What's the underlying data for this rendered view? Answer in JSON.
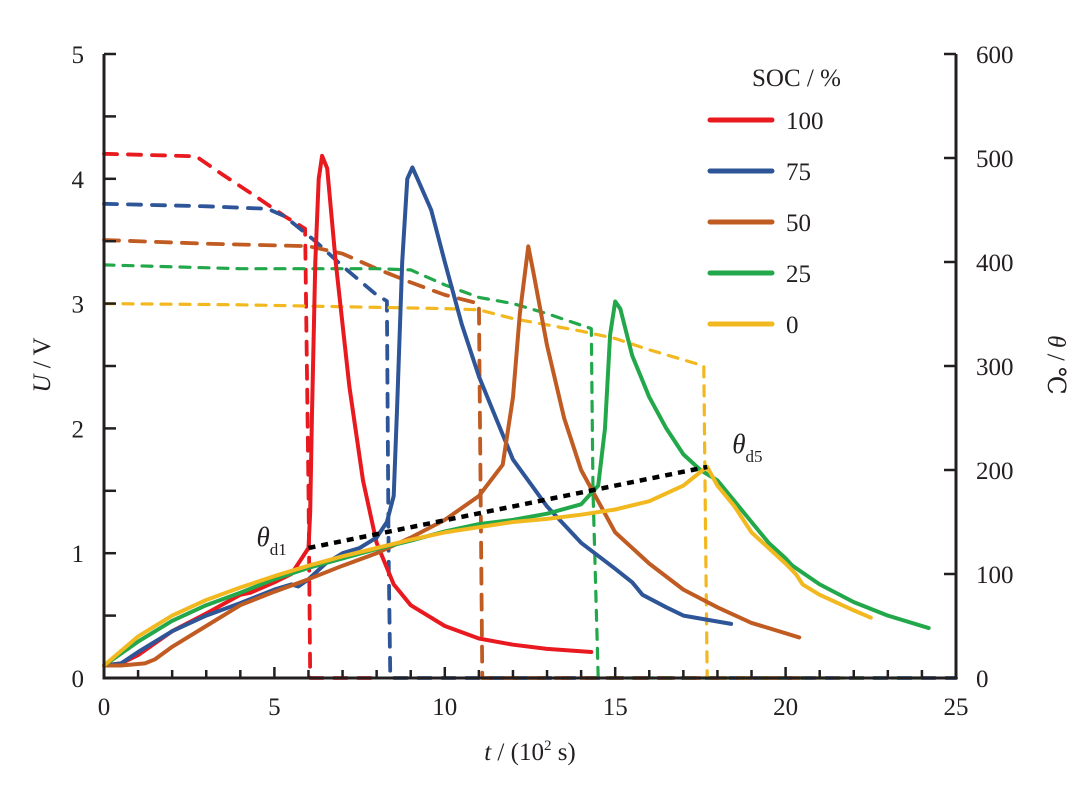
{
  "chart_data": {
    "type": "line",
    "title": "",
    "xlabel": {
      "italic": "t",
      "rest": " / (10",
      "sup": "2",
      "end": " s)"
    },
    "ylabel_left": {
      "italic": "U",
      "rest": " / V"
    },
    "ylabel_right": {
      "italic": "θ",
      "rest": " / ℃"
    },
    "xlim": [
      0,
      25
    ],
    "ylim_left": [
      0,
      5
    ],
    "ylim_right": [
      0,
      600
    ],
    "x_ticks": [
      0,
      5,
      10,
      15,
      20,
      25
    ],
    "x_minor_step": 1,
    "y_left_ticks": [
      0,
      1,
      2,
      3,
      4,
      5
    ],
    "y_left_minor_step": 0.5,
    "y_right_ticks": [
      0,
      100,
      200,
      300,
      400,
      500,
      600
    ],
    "grid": false,
    "legend": {
      "title": "SOC / %",
      "placement": "top-right"
    },
    "series": [
      {
        "name": "100",
        "color": "#e8191f",
        "temperature": [
          [
            0,
            12
          ],
          [
            0.5,
            14
          ],
          [
            1,
            22
          ],
          [
            2,
            45
          ],
          [
            3,
            62
          ],
          [
            4,
            80
          ],
          [
            4.3,
            82
          ],
          [
            5,
            92
          ],
          [
            5.5,
            100
          ],
          [
            5.8,
            115
          ],
          [
            6.0,
            125
          ],
          [
            6.05,
            160
          ],
          [
            6.1,
            250
          ],
          [
            6.2,
            400
          ],
          [
            6.3,
            480
          ],
          [
            6.4,
            502
          ],
          [
            6.55,
            490
          ],
          [
            6.8,
            400
          ],
          [
            7.2,
            280
          ],
          [
            7.6,
            190
          ],
          [
            8,
            130
          ],
          [
            8.5,
            90
          ],
          [
            9,
            70
          ],
          [
            10,
            50
          ],
          [
            11,
            38
          ],
          [
            12,
            32
          ],
          [
            13,
            28
          ],
          [
            14.3,
            25
          ]
        ],
        "voltage": [
          [
            0,
            4.2
          ],
          [
            2.7,
            4.18
          ],
          [
            3.5,
            4.03
          ],
          [
            4.5,
            3.85
          ],
          [
            5.3,
            3.7
          ],
          [
            5.9,
            3.6
          ],
          [
            6.0,
            1.5
          ],
          [
            6.05,
            0
          ],
          [
            8,
            0
          ]
        ]
      },
      {
        "name": "75",
        "color": "#2e5597",
        "temperature": [
          [
            0,
            12
          ],
          [
            0.5,
            14
          ],
          [
            1,
            25
          ],
          [
            2,
            45
          ],
          [
            3,
            60
          ],
          [
            4,
            72
          ],
          [
            5,
            85
          ],
          [
            5.5,
            90
          ],
          [
            5.7,
            88
          ],
          [
            6,
            95
          ],
          [
            6.5,
            110
          ],
          [
            7,
            120
          ],
          [
            7.5,
            125
          ],
          [
            8,
            135
          ],
          [
            8.3,
            150
          ],
          [
            8.5,
            175
          ],
          [
            8.6,
            260
          ],
          [
            8.75,
            400
          ],
          [
            8.9,
            480
          ],
          [
            9.05,
            491
          ],
          [
            9.2,
            480
          ],
          [
            9.6,
            450
          ],
          [
            10,
            400
          ],
          [
            10.5,
            340
          ],
          [
            11,
            290
          ],
          [
            11.5,
            250
          ],
          [
            12,
            210
          ],
          [
            13,
            165
          ],
          [
            14,
            130
          ],
          [
            15,
            105
          ],
          [
            15.5,
            92
          ],
          [
            15.8,
            80
          ],
          [
            16.5,
            68
          ],
          [
            17,
            60
          ],
          [
            18.4,
            52
          ]
        ],
        "voltage": [
          [
            0,
            3.8
          ],
          [
            3,
            3.78
          ],
          [
            4.8,
            3.76
          ],
          [
            5.3,
            3.7
          ],
          [
            6.2,
            3.5
          ],
          [
            7,
            3.3
          ],
          [
            8,
            3.07
          ],
          [
            8.3,
            3.02
          ],
          [
            8.35,
            1
          ],
          [
            8.4,
            0
          ],
          [
            25,
            0
          ]
        ]
      },
      {
        "name": "50",
        "color": "#c05b22",
        "temperature": [
          [
            0,
            12
          ],
          [
            0.5,
            12
          ],
          [
            1.2,
            14
          ],
          [
            1.5,
            18
          ],
          [
            2,
            30
          ],
          [
            3,
            50
          ],
          [
            4,
            70
          ],
          [
            5,
            83
          ],
          [
            6,
            95
          ],
          [
            7,
            108
          ],
          [
            8,
            120
          ],
          [
            9,
            135
          ],
          [
            10,
            152
          ],
          [
            11,
            175
          ],
          [
            11.7,
            205
          ],
          [
            12,
            270
          ],
          [
            12.2,
            350
          ],
          [
            12.45,
            415
          ],
          [
            12.6,
            390
          ],
          [
            13,
            320
          ],
          [
            13.5,
            250
          ],
          [
            14,
            200
          ],
          [
            15,
            140
          ],
          [
            16,
            110
          ],
          [
            17,
            85
          ],
          [
            18,
            68
          ],
          [
            19,
            53
          ],
          [
            20.4,
            39
          ]
        ],
        "voltage": [
          [
            0,
            3.51
          ],
          [
            3,
            3.48
          ],
          [
            6,
            3.46
          ],
          [
            7,
            3.4
          ],
          [
            8,
            3.28
          ],
          [
            9,
            3.17
          ],
          [
            10,
            3.07
          ],
          [
            11,
            3.0
          ],
          [
            11.05,
            1.5
          ],
          [
            11.1,
            0
          ],
          [
            20.4,
            0
          ]
        ]
      },
      {
        "name": "25",
        "color": "#22a84a",
        "temperature": [
          [
            0,
            12
          ],
          [
            1,
            35
          ],
          [
            2,
            55
          ],
          [
            3,
            70
          ],
          [
            4,
            82
          ],
          [
            5,
            95
          ],
          [
            6,
            106
          ],
          [
            7,
            115
          ],
          [
            8,
            124
          ],
          [
            9,
            132
          ],
          [
            10,
            141
          ],
          [
            11,
            148
          ],
          [
            12,
            152
          ],
          [
            13,
            158
          ],
          [
            14,
            167
          ],
          [
            14.5,
            185
          ],
          [
            14.7,
            240
          ],
          [
            14.85,
            330
          ],
          [
            15,
            362
          ],
          [
            15.15,
            355
          ],
          [
            15.5,
            310
          ],
          [
            16,
            270
          ],
          [
            16.5,
            240
          ],
          [
            17,
            215
          ],
          [
            17.5,
            200
          ],
          [
            18,
            190
          ],
          [
            18.5,
            170
          ],
          [
            19,
            150
          ],
          [
            19.5,
            130
          ],
          [
            20,
            115
          ],
          [
            20.2,
            108
          ],
          [
            21,
            90
          ],
          [
            22,
            73
          ],
          [
            23,
            60
          ],
          [
            24.2,
            48
          ]
        ],
        "voltage": [
          [
            0,
            3.31
          ],
          [
            4,
            3.28
          ],
          [
            8,
            3.28
          ],
          [
            9,
            3.27
          ],
          [
            10,
            3.15
          ],
          [
            11,
            3.05
          ],
          [
            12,
            3.0
          ],
          [
            13,
            2.92
          ],
          [
            14.3,
            2.8
          ],
          [
            14.35,
            1.5
          ],
          [
            14.5,
            0
          ],
          [
            24.2,
            0
          ]
        ]
      },
      {
        "name": "0",
        "color": "#f2b81f",
        "temperature": [
          [
            0,
            12
          ],
          [
            1,
            40
          ],
          [
            2,
            60
          ],
          [
            3,
            75
          ],
          [
            4,
            87
          ],
          [
            5,
            98
          ],
          [
            6,
            108
          ],
          [
            7,
            117
          ],
          [
            8,
            125
          ],
          [
            9,
            133
          ],
          [
            10,
            140
          ],
          [
            11,
            145
          ],
          [
            12,
            150
          ],
          [
            13,
            153
          ],
          [
            14,
            157
          ],
          [
            15,
            162
          ],
          [
            16,
            170
          ],
          [
            17,
            185
          ],
          [
            17.5,
            198
          ],
          [
            17.7,
            203
          ],
          [
            18,
            185
          ],
          [
            18.5,
            165
          ],
          [
            19,
            140
          ],
          [
            19.5,
            125
          ],
          [
            20,
            110
          ],
          [
            20.3,
            100
          ],
          [
            20.5,
            90
          ],
          [
            21,
            80
          ],
          [
            22,
            65
          ],
          [
            22.5,
            58
          ]
        ],
        "voltage": [
          [
            0,
            3.0
          ],
          [
            4,
            2.99
          ],
          [
            6,
            2.98
          ],
          [
            10,
            2.96
          ],
          [
            11,
            2.95
          ],
          [
            12,
            2.88
          ],
          [
            14,
            2.78
          ],
          [
            15,
            2.72
          ],
          [
            16,
            2.63
          ],
          [
            17,
            2.55
          ],
          [
            17.6,
            2.5
          ],
          [
            17.65,
            1.2
          ],
          [
            17.7,
            0
          ],
          [
            22.5,
            0
          ]
        ]
      }
    ],
    "annotations": [
      {
        "text": "θ",
        "sub": "d1",
        "x": 6.0,
        "theta": 125
      },
      {
        "text": "θ",
        "sub": "d5",
        "x": 17.7,
        "theta": 203
      }
    ],
    "onset_line": {
      "color": "#000000",
      "points": [
        [
          6.0,
          125
        ],
        [
          17.7,
          203
        ]
      ]
    }
  }
}
